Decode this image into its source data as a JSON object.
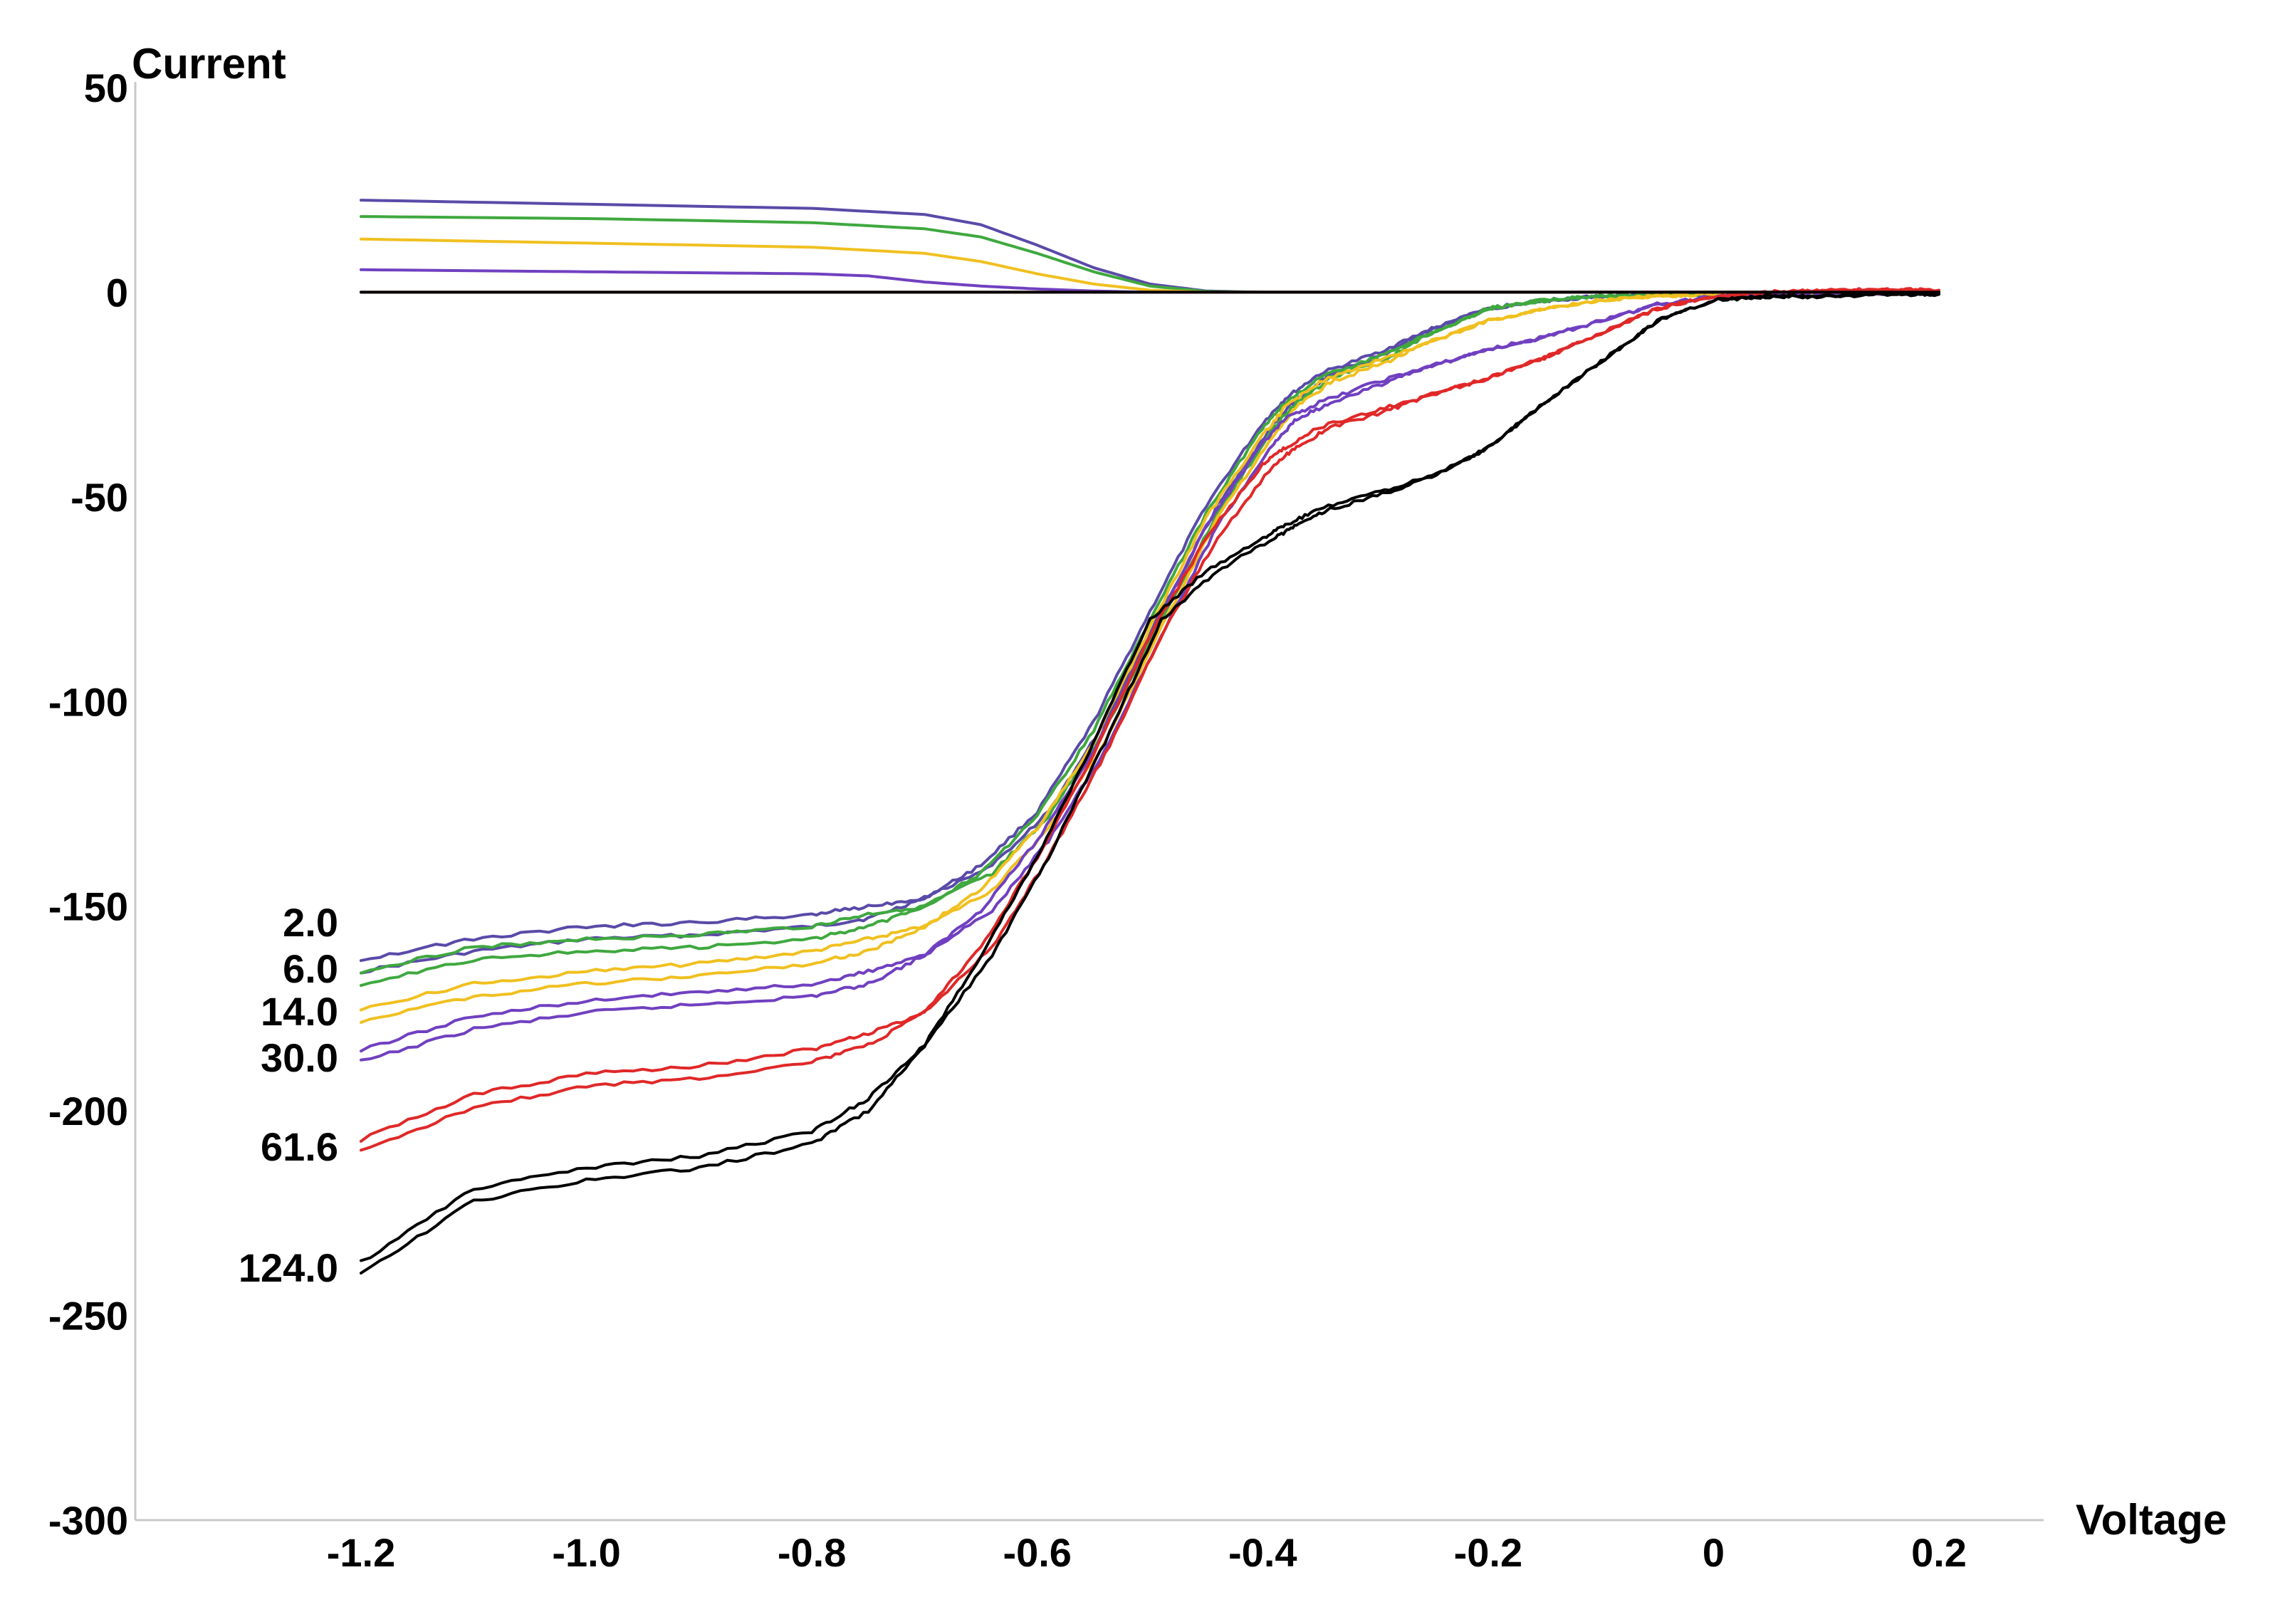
{
  "chart_data": {
    "type": "line",
    "title": "",
    "xlabel": "Voltage",
    "ylabel": "Current",
    "xlim": [
      -1.3,
      0.2
    ],
    "ylim": [
      -300,
      50
    ],
    "grid": false,
    "legend": "inline labels at left end of curves",
    "x_ticks": [
      {
        "value": -1.2,
        "label": "-1.2"
      },
      {
        "value": -1.0,
        "label": "-1.0"
      },
      {
        "value": -0.8,
        "label": "-0.8"
      },
      {
        "value": -0.6,
        "label": "-0.6"
      },
      {
        "value": -0.4,
        "label": "-0.4"
      },
      {
        "value": -0.2,
        "label": "-0.2"
      },
      {
        "value": 0,
        "label": "0"
      },
      {
        "value": 0.2,
        "label": "0.2"
      }
    ],
    "y_ticks": [
      {
        "value": 50,
        "label": "50"
      },
      {
        "value": 0,
        "label": "0"
      },
      {
        "value": -50,
        "label": "-50"
      },
      {
        "value": -100,
        "label": "-100"
      },
      {
        "value": -150,
        "label": "-150"
      },
      {
        "value": -200,
        "label": "-200"
      },
      {
        "value": -250,
        "label": "-250"
      },
      {
        "value": -300,
        "label": "-300"
      }
    ],
    "series": [
      {
        "name": "2.0",
        "color": "#5a4aa8",
        "cathodic": {
          "x": [
            -1.2,
            -1.1,
            -1.0,
            -0.9,
            -0.8,
            -0.75,
            -0.7,
            -0.65,
            -0.6,
            -0.55,
            -0.5,
            -0.45,
            -0.4,
            -0.38,
            -0.35,
            -0.3,
            -0.25,
            -0.2,
            -0.15,
            -0.1,
            -0.05,
            0,
            0.05,
            0.1,
            0.15,
            0.2
          ],
          "y": [
            -166,
            -161,
            -158,
            -157,
            -155,
            -153,
            -148,
            -140,
            -127,
            -105,
            -78,
            -52,
            -32,
            -26,
            -20,
            -15,
            -9,
            -4,
            -2,
            -1,
            -0.5,
            -0.5,
            -0.3,
            -0.2,
            -0.2,
            -0.2
          ]
        },
        "anodic": {
          "x": [
            -1.2,
            -1.0,
            -0.8,
            -0.7,
            -0.65,
            -0.6,
            -0.55,
            -0.5,
            -0.45,
            -0.4,
            -0.2,
            0,
            0.2
          ],
          "y": [
            22.5,
            21.5,
            20.5,
            19,
            16.5,
            11.5,
            6,
            2,
            0.3,
            0,
            0,
            0,
            0
          ]
        }
      },
      {
        "name": "6.0",
        "color": "#3fa83f",
        "cathodic": {
          "x": [
            -1.2,
            -1.1,
            -1.0,
            -0.9,
            -0.8,
            -0.75,
            -0.7,
            -0.65,
            -0.6,
            -0.55,
            -0.5,
            -0.45,
            -0.4,
            -0.38,
            -0.35,
            -0.3,
            -0.25,
            -0.2,
            -0.15,
            -0.1,
            -0.05,
            0,
            0.05,
            0.1,
            0.15,
            0.2
          ],
          "y": [
            -169,
            -163,
            -161,
            -160,
            -158,
            -155,
            -150,
            -142,
            -128,
            -107,
            -80,
            -54,
            -33,
            -27,
            -21,
            -16,
            -10,
            -4,
            -2,
            -1,
            -0.5,
            -0.5,
            -0.3,
            -0.2,
            -0.2,
            -0.2
          ]
        },
        "anodic": {
          "x": [
            -1.2,
            -1.0,
            -0.8,
            -0.7,
            -0.65,
            -0.6,
            -0.55,
            -0.5,
            -0.45,
            -0.4,
            -0.2,
            0,
            0.2
          ],
          "y": [
            18.5,
            18,
            17,
            15.5,
            13.5,
            9.5,
            5,
            1.5,
            0.2,
            0,
            0,
            0,
            0
          ]
        }
      },
      {
        "name": "14.0",
        "color": "#f0c020",
        "cathodic": {
          "x": [
            -1.2,
            -1.1,
            -1.0,
            -0.9,
            -0.8,
            -0.75,
            -0.7,
            -0.65,
            -0.6,
            -0.55,
            -0.5,
            -0.45,
            -0.4,
            -0.38,
            -0.35,
            -0.3,
            -0.25,
            -0.2,
            -0.15,
            -0.1,
            -0.05,
            0,
            0.05,
            0.1,
            0.15,
            0.2
          ],
          "y": [
            -178,
            -172,
            -169,
            -167,
            -164,
            -161,
            -155,
            -146,
            -131,
            -110,
            -82,
            -55,
            -35,
            -28,
            -22,
            -17,
            -12,
            -7,
            -4,
            -2,
            -1,
            -0.5,
            -0.3,
            -0.2,
            -0.2,
            -0.2
          ]
        },
        "anodic": {
          "x": [
            -1.2,
            -1.0,
            -0.8,
            -0.7,
            -0.65,
            -0.6,
            -0.55,
            -0.5,
            -0.45,
            -0.4,
            -0.2,
            0,
            0.2
          ],
          "y": [
            13,
            12,
            11,
            9.5,
            7.5,
            4.5,
            2,
            0.5,
            0,
            0,
            0,
            0,
            0
          ]
        }
      },
      {
        "name": "30.0",
        "color": "#7040c0",
        "cathodic": {
          "x": [
            -1.2,
            -1.1,
            -1.0,
            -0.9,
            -0.8,
            -0.75,
            -0.7,
            -0.65,
            -0.6,
            -0.55,
            -0.5,
            -0.45,
            -0.4,
            -0.38,
            -0.35,
            -0.3,
            -0.25,
            -0.2,
            -0.15,
            -0.1,
            -0.05,
            0,
            0.05,
            0.1,
            0.15,
            0.2
          ],
          "y": [
            -188,
            -180,
            -176,
            -174,
            -172,
            -169,
            -162,
            -151,
            -134,
            -112,
            -84,
            -57,
            -37,
            -31,
            -27,
            -22,
            -18,
            -14,
            -11,
            -7,
            -3,
            -1,
            -0.5,
            -0.3,
            -0.2,
            -0.2
          ]
        },
        "anodic": {
          "x": [
            -1.2,
            -1.0,
            -0.8,
            -0.75,
            -0.7,
            -0.65,
            -0.6,
            -0.55,
            -0.5,
            -0.45,
            -0.4,
            -0.2,
            0,
            0.2
          ],
          "y": [
            5.5,
            5,
            4.5,
            4,
            2.5,
            1.5,
            0.8,
            0.3,
            0,
            0,
            0,
            0,
            0,
            0
          ]
        }
      },
      {
        "name": "61.6",
        "color": "#e02828",
        "cathodic": {
          "x": [
            -1.2,
            -1.1,
            -1.0,
            -0.9,
            -0.8,
            -0.75,
            -0.7,
            -0.65,
            -0.6,
            -0.55,
            -0.5,
            -0.45,
            -0.4,
            -0.38,
            -0.35,
            -0.3,
            -0.25,
            -0.2,
            -0.15,
            -0.1,
            -0.05,
            0,
            0.05,
            0.1,
            0.15,
            0.2
          ],
          "y": [
            -210,
            -199,
            -194,
            -192,
            -188,
            -184,
            -176,
            -160,
            -138,
            -113,
            -84,
            -60,
            -42,
            -38,
            -33,
            -29,
            -25,
            -21,
            -16,
            -10,
            -4,
            -1,
            0,
            0.5,
            0.5,
            0.5
          ]
        },
        "anodic": {
          "x": [
            -1.2,
            -0.8,
            -0.4,
            0,
            0.2
          ],
          "y": [
            0,
            0,
            0,
            0,
            0
          ]
        }
      },
      {
        "name": "124.0",
        "color": "#000000",
        "cathodic": {
          "x": [
            -1.2,
            -1.1,
            -1.0,
            -0.9,
            -0.8,
            -0.75,
            -0.7,
            -0.65,
            -0.6,
            -0.55,
            -0.5,
            -0.45,
            -0.4,
            -0.38,
            -0.35,
            -0.3,
            -0.25,
            -0.2,
            -0.15,
            -0.1,
            -0.05,
            0,
            0.05,
            0.1,
            0.15,
            0.2
          ],
          "y": [
            -240,
            -222,
            -217,
            -214,
            -208,
            -200,
            -184,
            -162,
            -138,
            -110,
            -80,
            -68,
            -60,
            -57,
            -53,
            -49,
            -45,
            -38,
            -27,
            -17,
            -7,
            -2,
            -1,
            -1,
            -0.5,
            -0.5
          ]
        },
        "anodic": {
          "x": [
            -1.2,
            -0.8,
            -0.4,
            0,
            0.2
          ],
          "y": [
            0,
            0,
            0,
            0,
            0
          ]
        }
      }
    ]
  }
}
